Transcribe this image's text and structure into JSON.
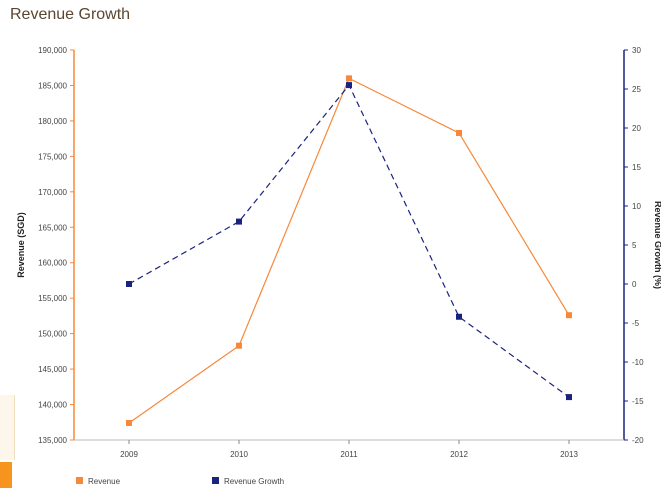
{
  "title": "Revenue Growth",
  "chart_data": {
    "type": "line",
    "categories": [
      "2009",
      "2010",
      "2011",
      "2012",
      "2013"
    ],
    "series": [
      {
        "name": "Revenue",
        "axis": "left",
        "color": "#f7883a",
        "line_style": "solid",
        "values": [
          137400,
          148300,
          186000,
          178300,
          152600
        ]
      },
      {
        "name": "Revenue Growth",
        "axis": "right",
        "color": "#1a237e",
        "line_style": "dashed",
        "values": [
          0,
          8,
          25.5,
          -4.2,
          -14.5
        ]
      }
    ],
    "ylabel": "Revenue (SGD)",
    "y2label": "Revenue Growth (%)",
    "ylim": [
      135000,
      190000
    ],
    "y2lim": [
      -20,
      30
    ],
    "yticks": [
      "135,000",
      "140,000",
      "145,000",
      "150,000",
      "155,000",
      "160,000",
      "165,000",
      "170,000",
      "175,000",
      "180,000",
      "185,000",
      "190,000"
    ],
    "y2ticks": [
      "-20",
      "-15",
      "-10",
      "-5",
      "0",
      "5",
      "10",
      "15",
      "20",
      "25",
      "30"
    ],
    "left_axis_color": "#f7883a",
    "right_axis_color": "#1a237e",
    "grid": false,
    "legend": "bottom-left"
  }
}
